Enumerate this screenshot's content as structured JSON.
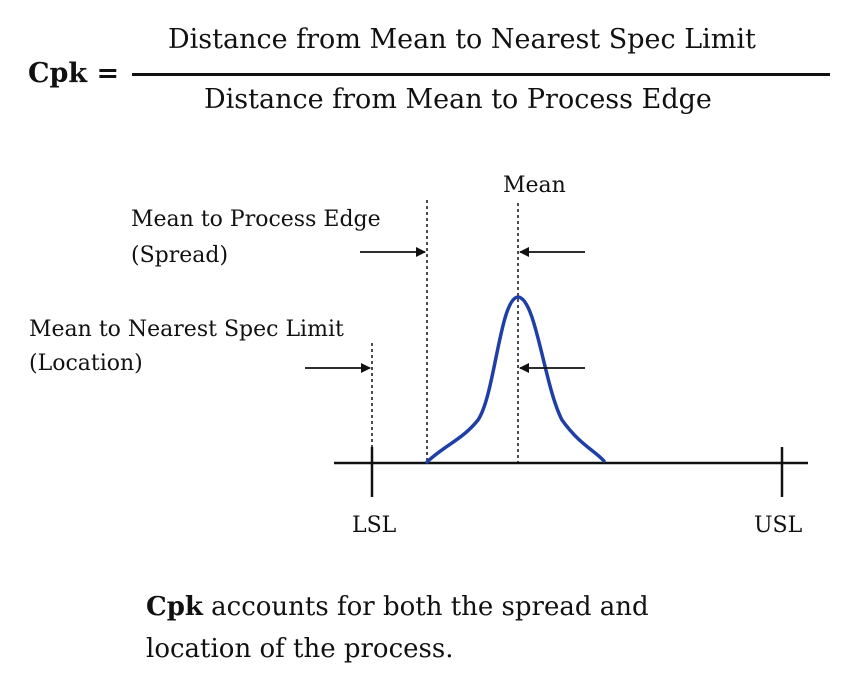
{
  "formula": {
    "lhs": "Cpk =",
    "numerator": "Distance from Mean to Nearest Spec Limit",
    "denominator": "Distance from Mean to Process Edge"
  },
  "diagram": {
    "mean_label": "Mean",
    "spread_label_line1": "Mean to Process Edge",
    "spread_label_line2": "(Spread)",
    "location_label_line1": "Mean to Nearest Spec Limit",
    "location_label_line2": "(Location)",
    "lsl_label": "LSL",
    "usl_label": "USL",
    "curve_color": "#1f3ea6",
    "line_color": "#111111"
  },
  "caption": {
    "bold": "Cpk",
    "rest_line1": " accounts for both the spread and",
    "line2": "location of the process."
  }
}
